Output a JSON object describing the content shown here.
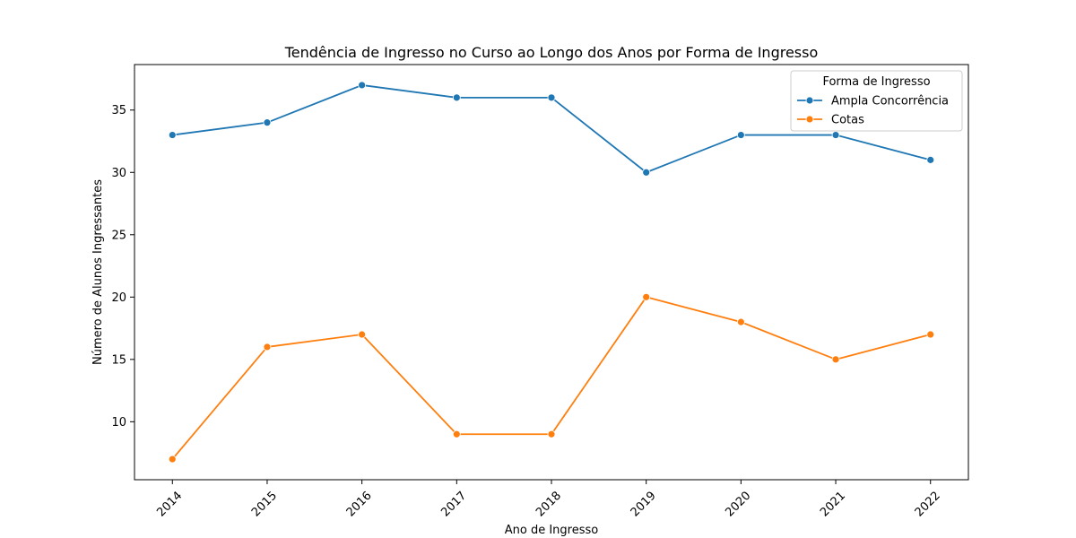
{
  "chart_data": {
    "type": "line",
    "title": "Tendência de Ingresso no Curso ao Longo dos Anos por Forma de Ingresso",
    "xlabel": "Ano de Ingresso",
    "ylabel": "Número de Alunos Ingressantes",
    "x": [
      2014,
      2015,
      2016,
      2017,
      2018,
      2019,
      2020,
      2021,
      2022
    ],
    "x_tick_labels": [
      "2014",
      "2015",
      "2016",
      "2017",
      "2018",
      "2019",
      "2020",
      "2021",
      "2022"
    ],
    "xlim": [
      2013.6,
      2022.4
    ],
    "ylim": [
      5.35,
      38.65
    ],
    "y_ticks": [
      10,
      15,
      20,
      25,
      30,
      35
    ],
    "y_tick_labels": [
      "10",
      "15",
      "20",
      "25",
      "30",
      "35"
    ],
    "grid": false,
    "legend": {
      "title": "Forma de Ingresso",
      "placement": "top-right"
    },
    "series": [
      {
        "name": "Ampla Concorrência",
        "color": "#1f77b4",
        "values": [
          33,
          34,
          37,
          36,
          36,
          30,
          33,
          33,
          31
        ]
      },
      {
        "name": "Cotas",
        "color": "#ff7f0e",
        "values": [
          7,
          16,
          17,
          9,
          9,
          20,
          18,
          15,
          17
        ]
      }
    ]
  }
}
